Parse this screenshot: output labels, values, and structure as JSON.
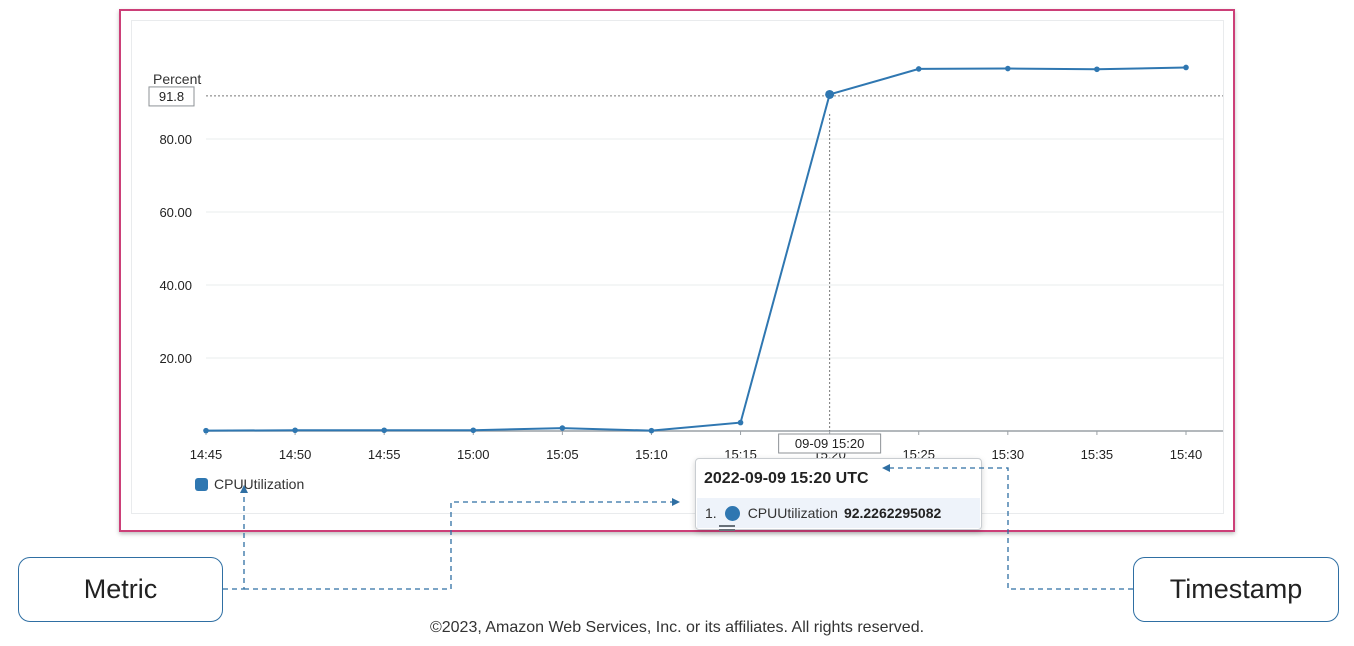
{
  "chart_data": {
    "type": "line",
    "ylabel": "Percent",
    "x": [
      "14:45",
      "14:50",
      "14:55",
      "15:00",
      "15:05",
      "15:10",
      "15:15",
      "15:20",
      "15:25",
      "15:30",
      "15:35",
      "15:40"
    ],
    "series": [
      {
        "name": "CPUUtilization",
        "color": "#2f77b1",
        "values": [
          0.1,
          0.2,
          0.2,
          0.2,
          0.8,
          0.1,
          2.3,
          92.2,
          99.2,
          99.3,
          99.1,
          99.6
        ]
      }
    ],
    "yticks": [
      "20.00",
      "40.00",
      "60.00",
      "80.00"
    ],
    "ylim": [
      0,
      100
    ],
    "grid": true,
    "legend": "bottom-left",
    "crosshair": {
      "x_label": "09-09 15:20",
      "y_label": "91.8",
      "x": "15:20",
      "y": 91.8
    },
    "tooltip": {
      "title": "2022-09-09 15:20 UTC",
      "index": "1.",
      "series": "CPUUtilization",
      "value": "92.2262295082"
    }
  },
  "callouts": {
    "metric": "Metric",
    "timestamp": "Timestamp"
  },
  "footer": {
    "copyright": "©2023, Amazon Web Services, Inc. or its affiliates. All rights reserved."
  },
  "colors": {
    "frame": "#cc3f78",
    "series": "#2f77b1",
    "callout_border": "#2f6fa3"
  }
}
